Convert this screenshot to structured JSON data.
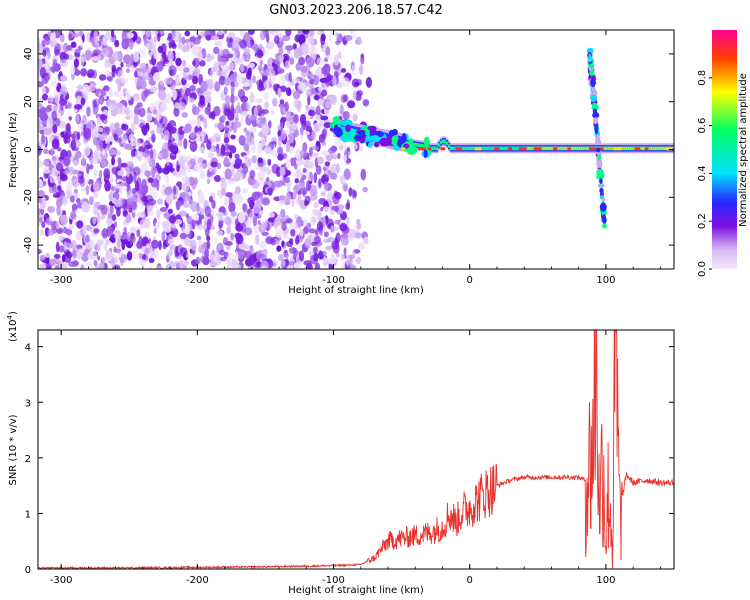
{
  "title": "GN03.2023.206.18.57.C42",
  "colors": {
    "snr_line": "#e8322e",
    "spectrogram_low": "#e6d8f8",
    "spectrogram_mid": "#7a1fe0",
    "axis": "#000000",
    "colorbar_stops": [
      "#d9b8f5",
      "#7a10e0",
      "#2828ff",
      "#00e0ff",
      "#00ff60",
      "#ffff00",
      "#ff4000",
      "#ff0090"
    ]
  },
  "chart_data": [
    {
      "type": "heatmap",
      "xlabel": "Height of straight line (km)",
      "ylabel": "Frequency (Hz)",
      "xlim": [
        -317,
        150
      ],
      "ylim": [
        -50,
        50
      ],
      "xticks": [
        -300,
        -200,
        -100,
        0,
        100
      ],
      "yticks": [
        -40,
        -20,
        0,
        20,
        40
      ],
      "grid": false,
      "colorbar": {
        "label": "Normalized spectral amplitude",
        "range": [
          0,
          1
        ],
        "ticks": [
          "0.0",
          "0.2",
          "0.4",
          "0.6",
          "0.8"
        ]
      },
      "features": {
        "noise_region_x": [
          -317,
          -85
        ],
        "signal_band_freq_hz": 0,
        "signal_start_x": -100,
        "burst_x": [
          88,
          108
        ],
        "burst_freq_range_hz": [
          -30,
          42
        ]
      }
    },
    {
      "type": "line",
      "xlabel": "Height of straight line (km)",
      "ylabel": "SNR (10 * v/v)",
      "ylabel_multiplier": "(x10",
      "ylabel_exponent": "4",
      "ylabel_close": ")",
      "xlim": [
        -317,
        150
      ],
      "ylim": [
        0,
        4.3
      ],
      "xticks": [
        -300,
        -200,
        -100,
        0,
        100
      ],
      "yticks": [
        0,
        1,
        2,
        3,
        4
      ],
      "grid": false,
      "series": [
        {
          "x": [
            -317,
            -250,
            -200,
            -150,
            -100,
            -80,
            -70,
            -60,
            -50,
            -40,
            -30,
            -20,
            -15,
            -10,
            -5,
            0,
            10,
            20,
            30,
            40,
            50,
            60,
            70,
            80,
            85,
            90,
            93,
            95,
            98,
            100,
            102,
            105,
            107,
            110,
            115,
            120,
            130,
            140,
            150
          ],
          "y": [
            0.02,
            0.02,
            0.03,
            0.04,
            0.06,
            0.08,
            0.2,
            0.5,
            0.55,
            0.6,
            0.65,
            0.75,
            1.0,
            0.85,
            1.05,
            1.1,
            1.35,
            1.5,
            1.6,
            1.65,
            1.65,
            1.65,
            1.65,
            1.65,
            1.6,
            2.0,
            4.2,
            1.2,
            2.0,
            0.5,
            1.5,
            0.4,
            4.2,
            1.0,
            1.7,
            1.55,
            1.6,
            1.55,
            1.55
          ]
        }
      ]
    }
  ]
}
